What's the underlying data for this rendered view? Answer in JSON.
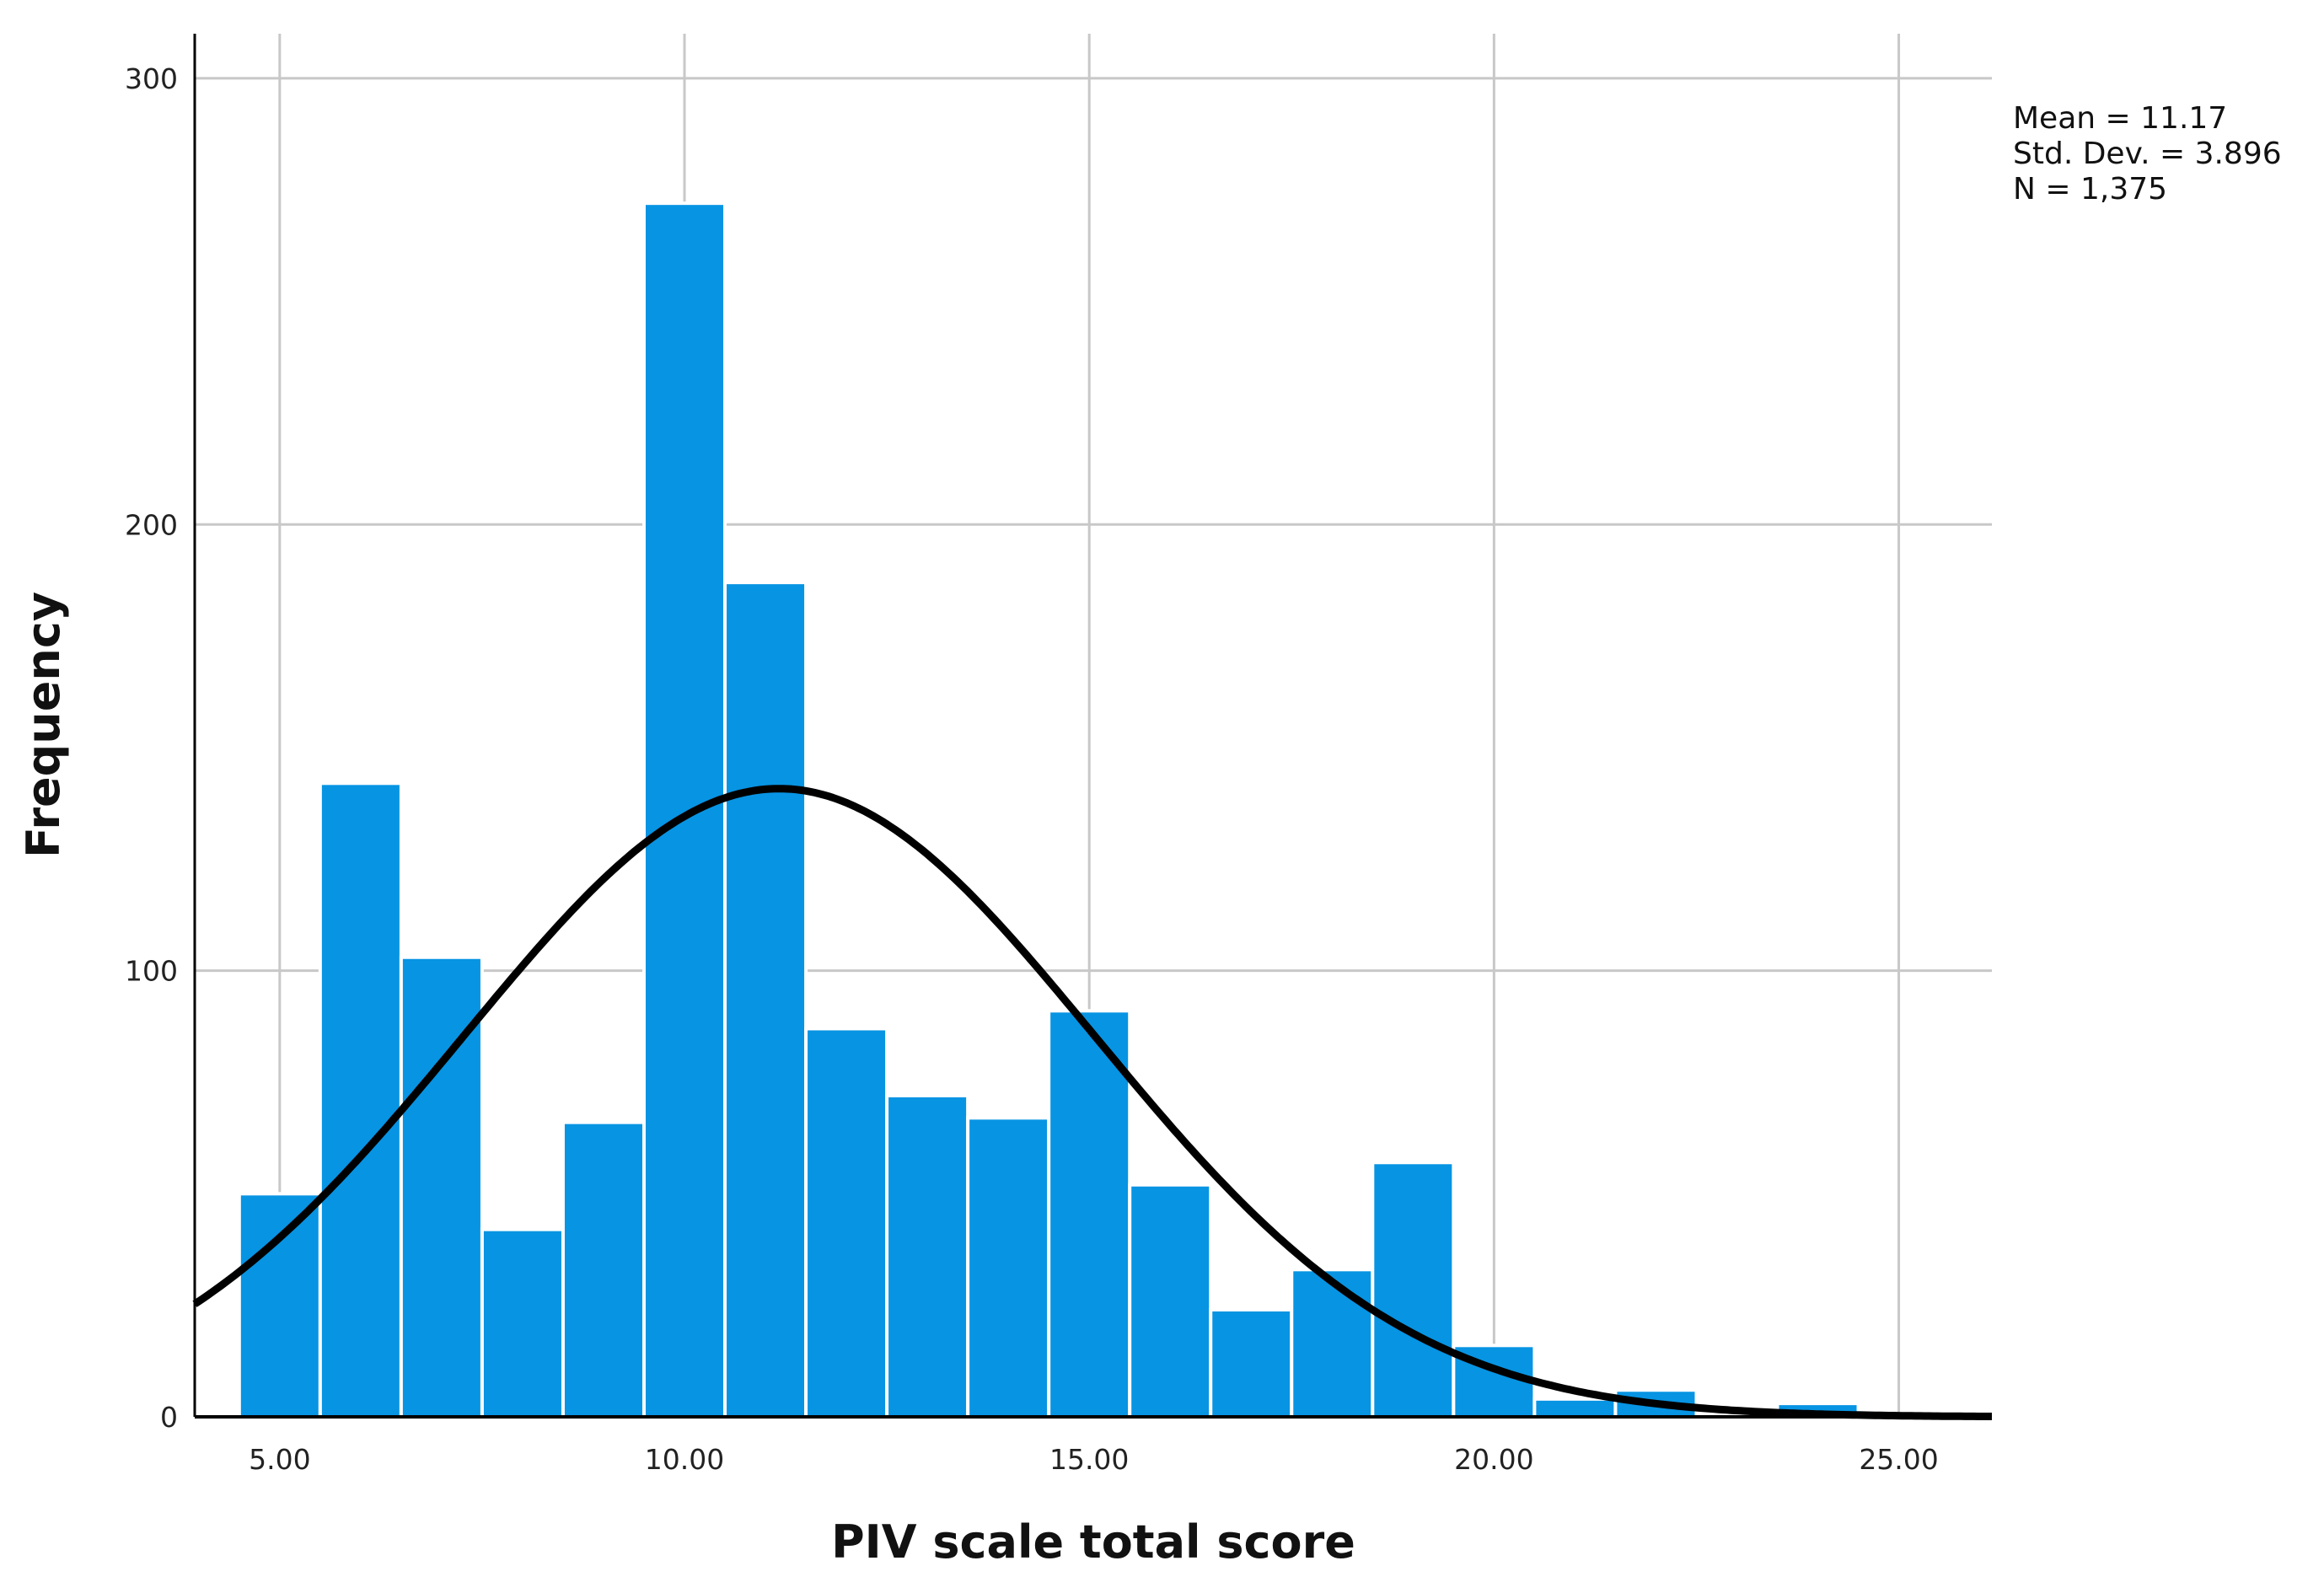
{
  "chart_data": {
    "type": "bar",
    "subtype": "histogram",
    "xlabel": "PIV scale total score",
    "ylabel": "Frequency",
    "xlim": [
      3.95,
      26.15
    ],
    "ylim": [
      0,
      300
    ],
    "xticks": [
      5,
      10,
      15,
      20,
      25
    ],
    "xtick_labels": [
      "5.00",
      "10.00",
      "15.00",
      "20.00",
      "25.00"
    ],
    "yticks": [
      0,
      100,
      200,
      300
    ],
    "ytick_labels": [
      "0",
      "100",
      "200",
      "300"
    ],
    "bin_width": 1,
    "bins": [
      {
        "x0": 4.5,
        "x1": 5.5,
        "count": 50
      },
      {
        "x0": 5.5,
        "x1": 6.5,
        "count": 142
      },
      {
        "x0": 6.5,
        "x1": 7.5,
        "count": 103
      },
      {
        "x0": 7.5,
        "x1": 8.5,
        "count": 42
      },
      {
        "x0": 8.5,
        "x1": 9.5,
        "count": 66
      },
      {
        "x0": 9.5,
        "x1": 10.5,
        "count": 272
      },
      {
        "x0": 10.5,
        "x1": 11.5,
        "count": 187
      },
      {
        "x0": 11.5,
        "x1": 12.5,
        "count": 87
      },
      {
        "x0": 12.5,
        "x1": 13.5,
        "count": 72
      },
      {
        "x0": 13.5,
        "x1": 14.5,
        "count": 67
      },
      {
        "x0": 14.5,
        "x1": 15.5,
        "count": 91
      },
      {
        "x0": 15.5,
        "x1": 16.5,
        "count": 52
      },
      {
        "x0": 16.5,
        "x1": 17.5,
        "count": 24
      },
      {
        "x0": 17.5,
        "x1": 18.5,
        "count": 33
      },
      {
        "x0": 18.5,
        "x1": 19.5,
        "count": 57
      },
      {
        "x0": 19.5,
        "x1": 20.5,
        "count": 16
      },
      {
        "x0": 20.5,
        "x1": 21.5,
        "count": 4
      },
      {
        "x0": 21.5,
        "x1": 22.5,
        "count": 6
      },
      {
        "x0": 22.5,
        "x1": 23.5,
        "count": 0
      },
      {
        "x0": 23.5,
        "x1": 24.5,
        "count": 3
      }
    ],
    "normal_curve": {
      "mean": 11.17,
      "sd": 3.896,
      "n": 1375
    },
    "stats": {
      "mean_label": "Mean = 11.17",
      "sd_label": "Std. Dev. = 3.896",
      "n_label": "N = 1,375"
    },
    "grid": true,
    "colors": {
      "bar_fill": "#0794e3",
      "bar_edge": "#ffffff",
      "curve": "#000000",
      "grid": "#c8c8c8",
      "axis": "#000000"
    }
  }
}
